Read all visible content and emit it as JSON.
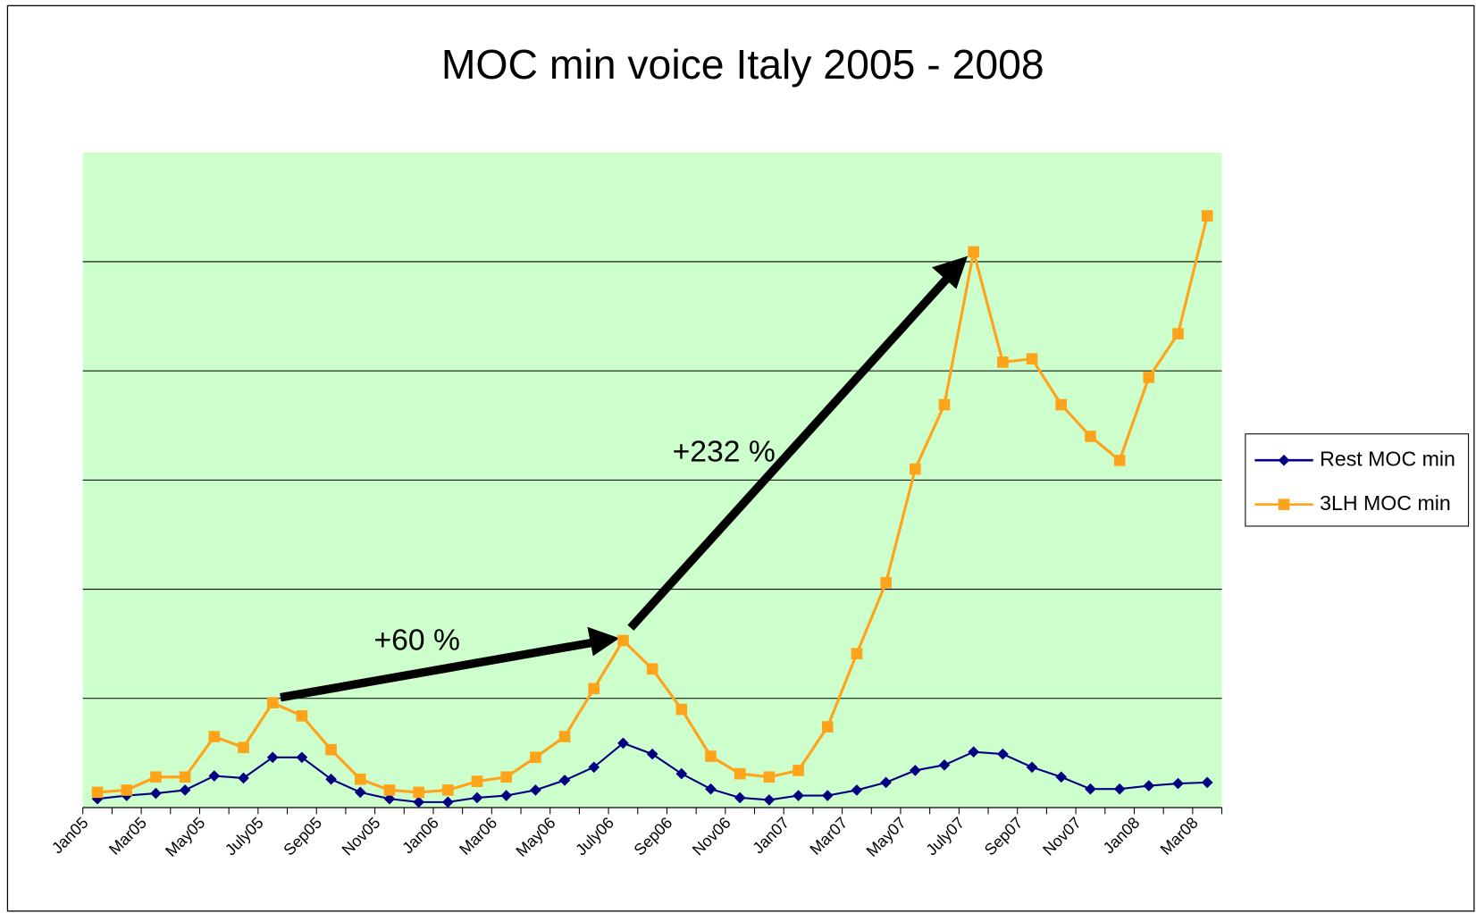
{
  "chart_data": {
    "type": "line",
    "title": "MOC min voice Italy 2005 - 2008",
    "categories": [
      "Jan05",
      null,
      "Mar05",
      null,
      "May05",
      null,
      "July05",
      null,
      "Sep05",
      null,
      "Nov05",
      null,
      "Jan06",
      null,
      "Mar06",
      null,
      "May06",
      null,
      "July06",
      null,
      "Sep06",
      null,
      "Nov06",
      null,
      "Jan07",
      null,
      "Mar07",
      null,
      "May07",
      null,
      "July07",
      null,
      "Sep07",
      null,
      "Nov07",
      null,
      "Jan08",
      null,
      "Mar08"
    ],
    "series": [
      {
        "name": "Rest MOC min",
        "color": "#000080",
        "marker": "diamond",
        "values": [
          0.08,
          0.11,
          0.13,
          0.16,
          0.29,
          0.27,
          0.46,
          0.46,
          0.26,
          0.14,
          0.08,
          0.05,
          0.05,
          0.09,
          0.11,
          0.16,
          0.25,
          0.37,
          0.59,
          0.49,
          0.31,
          0.17,
          0.09,
          0.07,
          0.11,
          0.11,
          0.16,
          0.23,
          0.34,
          0.39,
          0.51,
          0.49,
          0.37,
          0.28,
          0.17,
          0.17,
          0.2,
          0.22,
          0.23
        ]
      },
      {
        "name": "3LH MOC min",
        "color": "#ffa31a",
        "marker": "square",
        "values": [
          0.14,
          0.16,
          0.28,
          0.28,
          0.65,
          0.55,
          0.96,
          0.84,
          0.53,
          0.26,
          0.16,
          0.14,
          0.16,
          0.24,
          0.28,
          0.46,
          0.65,
          1.09,
          1.53,
          1.27,
          0.9,
          0.47,
          0.31,
          0.28,
          0.34,
          0.74,
          1.41,
          2.06,
          3.1,
          3.69,
          5.09,
          4.08,
          4.11,
          3.69,
          3.4,
          3.18,
          3.94,
          4.34,
          5.42
        ]
      }
    ],
    "ylim": [
      0,
      6
    ],
    "yticks": [
      0,
      1,
      2,
      3,
      4,
      5,
      6
    ],
    "grid": true,
    "plot_background": "#ccffcc",
    "legend": "right",
    "annotations": [
      "+60 %",
      "+232 %"
    ]
  }
}
